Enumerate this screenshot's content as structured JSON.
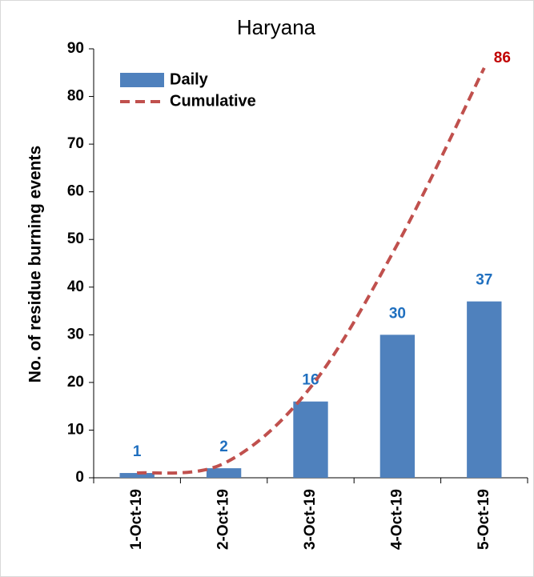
{
  "chart_data": {
    "type": "bar_line",
    "title": "Haryana",
    "y_label": "No. of residue burning events",
    "categories": [
      "1-Oct-19",
      "2-Oct-19",
      "3-Oct-19",
      "4-Oct-19",
      "5-Oct-19"
    ],
    "series": [
      {
        "name": "Daily",
        "type": "bar",
        "color": "#4f81bd",
        "label_color": "#1f6fbf",
        "labels": "all",
        "values": [
          1,
          2,
          16,
          30,
          37
        ]
      },
      {
        "name": "Cumulative",
        "type": "line",
        "color": "#c0504d",
        "dashed": true,
        "label_color": "#c00000",
        "labels": "last",
        "values": [
          1,
          3,
          19,
          49,
          86
        ]
      }
    ],
    "ylim": [
      0,
      90
    ],
    "yticks": [
      0,
      10,
      20,
      30,
      40,
      50,
      60,
      70,
      80,
      90
    ],
    "grid": false,
    "legend": "top-left"
  }
}
